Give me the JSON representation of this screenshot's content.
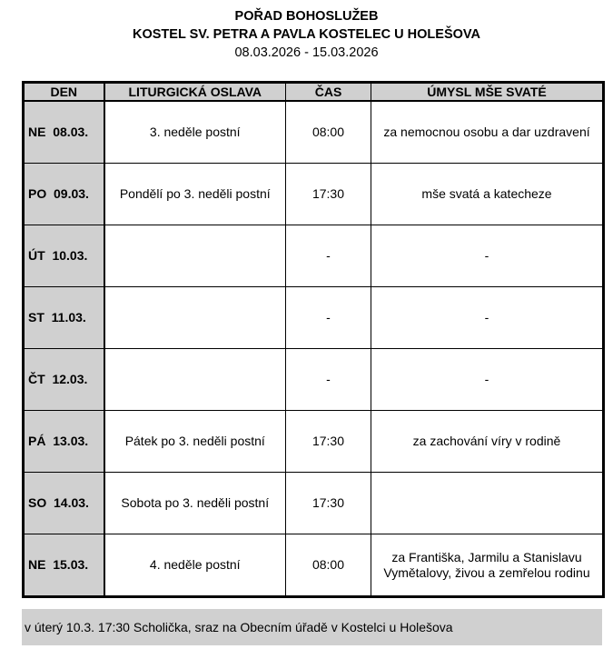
{
  "header": {
    "title": "POŘAD BOHOSLUŽEB",
    "church": "KOSTEL SV. PETRA A PAVLA KOSTELEC U HOLEŠOVA",
    "date_range": "08.03.2026 - 15.03.2026"
  },
  "table": {
    "columns": [
      "DEN",
      "LITURGICKÁ OSLAVA",
      "ČAS",
      "ÚMYSL MŠE SVATÉ"
    ],
    "rows": [
      {
        "day": "NE  08.03.",
        "celebration": "3. neděle postní",
        "time": "08:00",
        "intention": "za nemocnou osobu a dar uzdravení"
      },
      {
        "day": "PO  09.03.",
        "celebration": "Pondělí po 3. neděli postní",
        "time": "17:30",
        "intention": "mše svatá a katecheze"
      },
      {
        "day": "ÚT  10.03.",
        "celebration": "",
        "time": "-",
        "intention": "-"
      },
      {
        "day": "ST  11.03.",
        "celebration": "",
        "time": "-",
        "intention": "-"
      },
      {
        "day": "ČT  12.03.",
        "celebration": "",
        "time": "-",
        "intention": "-"
      },
      {
        "day": "PÁ  13.03.",
        "celebration": "Pátek po 3. neděli postní",
        "time": "17:30",
        "intention": "za zachování víry v rodině"
      },
      {
        "day": "SO  14.03.",
        "celebration": "Sobota po 3. neděli postní",
        "time": "17:30",
        "intention": ""
      },
      {
        "day": "NE  15.03.",
        "celebration": "4. neděle postní",
        "time": "08:00",
        "intention": "za Františka, Jarmilu a Stanislavu Vymětalovy, živou a zemřelou rodinu"
      }
    ]
  },
  "note": "v úterý 10.3. 17:30 Scholička, sraz na Obecním úřadě v Kostelci u Holešova",
  "colors": {
    "header_fill": "#d0d0d0",
    "note_fill": "#d0d0d0"
  }
}
